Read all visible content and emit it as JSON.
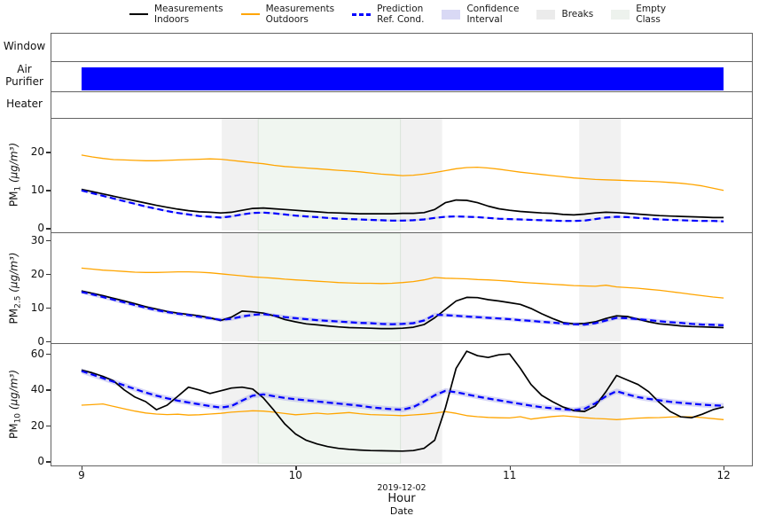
{
  "legend": {
    "items": [
      {
        "label": "Measurements\nIndoors",
        "type": "line",
        "color": "#000000"
      },
      {
        "label": "Measurements\nOutdoors",
        "type": "line",
        "color": "#ffa500"
      },
      {
        "label": "Prediction\nRef. Cond.",
        "type": "dashed",
        "color": "#0000ff"
      },
      {
        "label": "Confidence\nInterval",
        "type": "patch",
        "color": "#d9d9f5"
      },
      {
        "label": "Breaks",
        "type": "patch",
        "color": "#ebebeb"
      },
      {
        "label": "Empty\nClass",
        "type": "patch",
        "color": "#edf2ed"
      }
    ]
  },
  "indicator_rows": [
    {
      "label": "Window",
      "bar": null
    },
    {
      "label": "Air Purifier",
      "bar": {
        "start": 9.0,
        "end": 12.0,
        "color": "#0000ff"
      }
    },
    {
      "label": "Heater",
      "bar": null
    }
  ],
  "axis": {
    "x_range": [
      8.8595,
      12.132
    ],
    "x_ticks": [
      {
        "label": "9",
        "hour": 9
      },
      {
        "label": "10",
        "hour": 10
      },
      {
        "label": "11",
        "hour": 11
      },
      {
        "label": "12",
        "hour": 12
      }
    ],
    "date_offset": "2019-12-02",
    "xlabel": "Hour",
    "xlabel2": "Date"
  },
  "colors": {
    "indoors": "#000000",
    "outdoors": "#ffa500",
    "prediction": "#0000ff",
    "ci_fill": "#9999e8",
    "breaks_fill": "#e8e8e8",
    "empty_fill": "#e3eee3",
    "empty_edge": "#ccdccc",
    "purifier_bar": "#0000ff",
    "spine": "#636363"
  },
  "bands": {
    "breaks": [
      [
        9.655,
        9.825
      ],
      [
        10.49,
        10.685
      ],
      [
        11.325,
        11.52
      ]
    ],
    "empty_class": [
      [
        9.825,
        10.49
      ]
    ]
  },
  "chart_data": [
    {
      "type": "line",
      "ylabel": {
        "base": "PM",
        "sub": "1",
        "unit": " (μg/m³)"
      },
      "ylim": [
        -0.5,
        28.8
      ],
      "yticks": [
        0,
        10,
        20
      ],
      "x_start": 9.0,
      "x_step": 0.05,
      "series": [
        {
          "name": "Measurements Outdoors",
          "color": "#ffa500",
          "style": "solid",
          "width": 1.3,
          "values": [
            19.3,
            18.8,
            18.4,
            18.1,
            18.0,
            17.9,
            17.8,
            17.8,
            17.9,
            18.0,
            18.1,
            18.2,
            18.3,
            18.2,
            17.9,
            17.6,
            17.3,
            17.0,
            16.6,
            16.3,
            16.1,
            15.9,
            15.7,
            15.5,
            15.3,
            15.1,
            14.9,
            14.6,
            14.3,
            14.1,
            13.9,
            14.0,
            14.3,
            14.7,
            15.2,
            15.7,
            16.0,
            16.1,
            15.9,
            15.6,
            15.2,
            14.8,
            14.5,
            14.2,
            13.9,
            13.6,
            13.3,
            13.1,
            12.9,
            12.8,
            12.7,
            12.6,
            12.5,
            12.4,
            12.3,
            12.1,
            11.9,
            11.6,
            11.2,
            10.6,
            10.0
          ]
        },
        {
          "name": "Measurements Indoors",
          "color": "#000000",
          "style": "solid",
          "width": 1.7,
          "values": [
            10.3,
            9.7,
            9.1,
            8.5,
            7.9,
            7.3,
            6.7,
            6.1,
            5.6,
            5.1,
            4.7,
            4.4,
            4.3,
            4.1,
            4.3,
            4.8,
            5.3,
            5.4,
            5.2,
            5.0,
            4.8,
            4.6,
            4.4,
            4.2,
            4.1,
            4.0,
            3.9,
            3.9,
            3.9,
            3.9,
            4.0,
            4.0,
            4.2,
            5.0,
            6.8,
            7.5,
            7.4,
            6.8,
            5.9,
            5.2,
            4.8,
            4.5,
            4.3,
            4.1,
            4.0,
            3.7,
            3.6,
            3.8,
            4.1,
            4.3,
            4.2,
            4.0,
            3.8,
            3.6,
            3.4,
            3.3,
            3.2,
            3.1,
            3.0,
            2.9,
            2.9
          ]
        },
        {
          "name": "Prediction Ref. Cond.",
          "color": "#0000ff",
          "style": "dashed",
          "width": 2.2,
          "ci": 0.25,
          "values": [
            10.0,
            9.3,
            8.6,
            7.9,
            7.2,
            6.5,
            5.8,
            5.2,
            4.6,
            4.1,
            3.7,
            3.3,
            3.1,
            2.9,
            3.2,
            3.7,
            4.1,
            4.2,
            4.0,
            3.7,
            3.4,
            3.2,
            3.0,
            2.8,
            2.6,
            2.5,
            2.4,
            2.3,
            2.2,
            2.1,
            2.1,
            2.2,
            2.4,
            2.8,
            3.1,
            3.2,
            3.1,
            3.0,
            2.8,
            2.6,
            2.5,
            2.4,
            2.3,
            2.2,
            2.1,
            2.0,
            2.0,
            2.1,
            2.5,
            2.9,
            3.1,
            3.0,
            2.8,
            2.6,
            2.4,
            2.3,
            2.2,
            2.1,
            2.0,
            2.0,
            1.9
          ]
        }
      ]
    },
    {
      "type": "line",
      "ylabel": {
        "base": "PM",
        "sub": "2.5",
        "unit": " (μg/m³)"
      },
      "ylim": [
        0,
        32.2
      ],
      "yticks": [
        0,
        10,
        20,
        30
      ],
      "x_start": 9.0,
      "x_step": 0.05,
      "series": [
        {
          "name": "Measurements Outdoors",
          "color": "#ffa500",
          "style": "solid",
          "width": 1.3,
          "values": [
            21.8,
            21.5,
            21.2,
            21.0,
            20.8,
            20.6,
            20.5,
            20.5,
            20.6,
            20.7,
            20.7,
            20.6,
            20.4,
            20.1,
            19.8,
            19.5,
            19.2,
            19.0,
            18.8,
            18.5,
            18.3,
            18.1,
            17.9,
            17.7,
            17.5,
            17.4,
            17.3,
            17.3,
            17.2,
            17.3,
            17.5,
            17.8,
            18.3,
            19.0,
            18.8,
            18.7,
            18.6,
            18.4,
            18.3,
            18.1,
            17.9,
            17.6,
            17.4,
            17.2,
            17.0,
            16.8,
            16.6,
            16.5,
            16.4,
            16.7,
            16.2,
            16.0,
            15.8,
            15.5,
            15.2,
            14.8,
            14.4,
            14.0,
            13.6,
            13.2,
            12.9
          ]
        },
        {
          "name": "Measurements Indoors",
          "color": "#000000",
          "style": "solid",
          "width": 1.7,
          "values": [
            15.0,
            14.3,
            13.6,
            12.8,
            12.0,
            11.2,
            10.3,
            9.6,
            8.9,
            8.4,
            8.0,
            7.6,
            7.0,
            6.2,
            7.2,
            9.0,
            8.8,
            8.4,
            7.6,
            6.5,
            5.8,
            5.2,
            4.9,
            4.6,
            4.3,
            4.1,
            4.0,
            3.9,
            3.8,
            3.8,
            3.9,
            4.2,
            5.0,
            7.0,
            9.5,
            12.0,
            13.1,
            13.0,
            12.4,
            12.0,
            11.5,
            11.0,
            9.8,
            8.2,
            6.8,
            5.6,
            5.2,
            5.3,
            5.8,
            6.8,
            7.6,
            7.4,
            6.6,
            5.8,
            5.2,
            4.9,
            4.6,
            4.4,
            4.3,
            4.2,
            4.1
          ]
        },
        {
          "name": "Prediction Ref. Cond.",
          "color": "#0000ff",
          "style": "dashed",
          "width": 2.2,
          "ci": 0.6,
          "values": [
            14.7,
            14.0,
            13.2,
            12.4,
            11.6,
            10.8,
            10.0,
            9.3,
            8.7,
            8.2,
            7.8,
            7.3,
            6.9,
            6.4,
            6.7,
            7.4,
            7.9,
            8.1,
            7.7,
            7.2,
            6.9,
            6.6,
            6.3,
            6.1,
            5.9,
            5.7,
            5.5,
            5.4,
            5.2,
            5.1,
            5.2,
            5.4,
            6.2,
            7.9,
            7.8,
            7.6,
            7.4,
            7.2,
            7.0,
            6.8,
            6.6,
            6.3,
            6.1,
            5.8,
            5.6,
            5.3,
            5.1,
            5.0,
            5.4,
            6.2,
            7.0,
            6.9,
            6.6,
            6.3,
            6.0,
            5.7,
            5.5,
            5.2,
            5.0,
            4.9,
            4.8
          ]
        }
      ]
    },
    {
      "type": "line",
      "ylabel": {
        "base": "PM",
        "sub": "10",
        "unit": " (μg/m³)"
      },
      "ylim": [
        -1,
        65.5
      ],
      "yticks": [
        0,
        20,
        40,
        60
      ],
      "x_start": 9.0,
      "x_step": 0.05,
      "series": [
        {
          "name": "Measurements Outdoors",
          "color": "#ffa500",
          "style": "solid",
          "width": 1.3,
          "values": [
            31.5,
            31.8,
            32.2,
            30.8,
            29.5,
            28.2,
            27.2,
            26.6,
            26.3,
            26.5,
            26.0,
            26.2,
            26.6,
            27.0,
            27.6,
            28.0,
            28.4,
            28.2,
            27.6,
            26.9,
            26.2,
            26.6,
            27.1,
            26.6,
            27.0,
            27.4,
            26.8,
            26.3,
            26.1,
            25.9,
            25.7,
            26.1,
            26.5,
            27.1,
            27.9,
            27.0,
            25.7,
            25.1,
            24.7,
            24.5,
            24.4,
            25.1,
            23.8,
            24.5,
            25.2,
            25.6,
            25.1,
            24.5,
            24.1,
            23.9,
            23.5,
            23.9,
            24.3,
            24.5,
            24.6,
            24.9,
            25.1,
            25.0,
            24.6,
            24.0,
            23.5
          ]
        },
        {
          "name": "Measurements Indoors",
          "color": "#000000",
          "style": "solid",
          "width": 1.7,
          "values": [
            51,
            49.5,
            47.5,
            45,
            40,
            36,
            33.5,
            29,
            31.5,
            36.5,
            41.5,
            40,
            38,
            39.5,
            41,
            41.5,
            40.5,
            35.5,
            28.5,
            21,
            15.5,
            12,
            10,
            8.5,
            7.5,
            7,
            6.6,
            6.3,
            6.2,
            6.1,
            6,
            6.3,
            7.5,
            12,
            30,
            52,
            61.5,
            59,
            58,
            59.5,
            60,
            52,
            43,
            37,
            33.5,
            30.5,
            28.5,
            28,
            31,
            39,
            48,
            45.5,
            43,
            39,
            33,
            28,
            25,
            24.5,
            26.5,
            29,
            30.5
          ]
        },
        {
          "name": "Prediction Ref. Cond.",
          "color": "#0000ff",
          "style": "dashed",
          "width": 2.2,
          "ci": 1.5,
          "values": [
            50.5,
            48.5,
            46.5,
            44.5,
            42.5,
            40.5,
            38.5,
            36.8,
            35.3,
            34,
            33,
            32,
            31,
            30.2,
            31,
            34,
            36.8,
            37.5,
            36.5,
            35.5,
            34.8,
            34.2,
            33.6,
            33,
            32.4,
            31.8,
            31.2,
            30.4,
            29.8,
            29.3,
            29,
            30.5,
            33.5,
            37,
            39.5,
            38.7,
            37.5,
            36.3,
            35.2,
            34.2,
            33.2,
            32.2,
            31.2,
            30.4,
            29.8,
            29.2,
            28.8,
            29.5,
            32.5,
            36.5,
            39.3,
            37.5,
            36,
            35,
            34.2,
            33.4,
            32.8,
            32.3,
            31.8,
            31.4,
            31.2
          ]
        }
      ]
    }
  ]
}
